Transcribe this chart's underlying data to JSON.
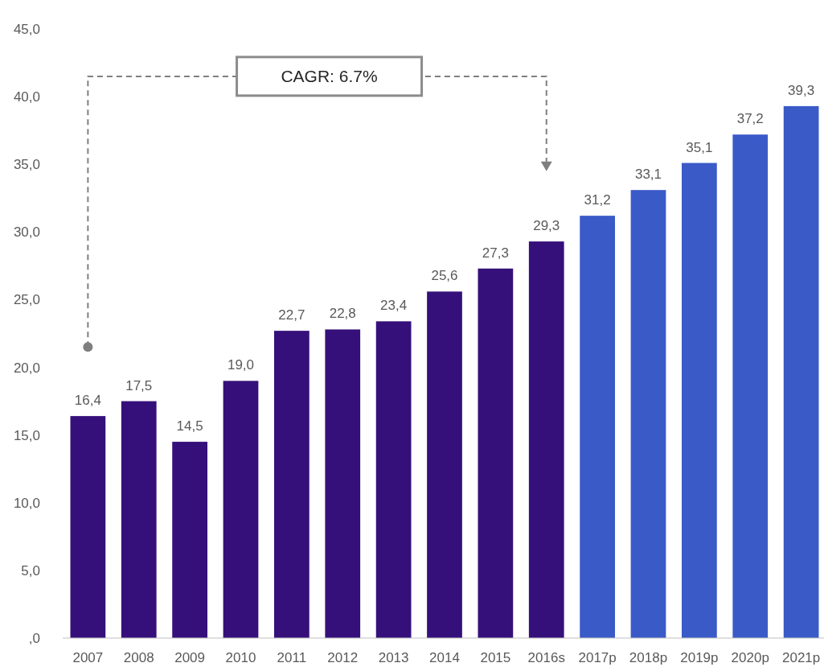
{
  "chart_data": {
    "type": "bar",
    "categories": [
      "2007",
      "2008",
      "2009",
      "2010",
      "2011",
      "2012",
      "2013",
      "2014",
      "2015",
      "2016s",
      "2017p",
      "2018p",
      "2019p",
      "2020p",
      "2021p"
    ],
    "values": [
      16.4,
      17.5,
      14.5,
      19.0,
      22.7,
      22.8,
      23.4,
      25.6,
      27.3,
      29.3,
      31.2,
      33.1,
      35.1,
      37.2,
      39.3
    ],
    "colors": [
      "#35107a",
      "#35107a",
      "#35107a",
      "#35107a",
      "#35107a",
      "#35107a",
      "#35107a",
      "#35107a",
      "#35107a",
      "#35107a",
      "#3a5ac8",
      "#3a5ac8",
      "#3a5ac8",
      "#3a5ac8",
      "#3a5ac8"
    ],
    "value_labels": [
      "16,4",
      "17,5",
      "14,5",
      "19,0",
      "22,7",
      "22,8",
      "23,4",
      "25,6",
      "27,3",
      "29,3",
      "31,2",
      "33,1",
      "35,1",
      "37,2",
      "39,3"
    ],
    "ylim": [
      0,
      45
    ],
    "yticks": [
      {
        "value": 0,
        "label": ",0"
      },
      {
        "value": 5,
        "label": "5,0"
      },
      {
        "value": 10,
        "label": "10,0"
      },
      {
        "value": 15,
        "label": "15,0"
      },
      {
        "value": 20,
        "label": "20,0"
      },
      {
        "value": 25,
        "label": "25,0"
      },
      {
        "value": 30,
        "label": "30,0"
      },
      {
        "value": 35,
        "label": "35,0"
      },
      {
        "value": 40,
        "label": "40,0"
      },
      {
        "value": 45,
        "label": "45,0"
      }
    ],
    "annotations": [
      "CAGR: 6.7%"
    ],
    "grid": false
  }
}
